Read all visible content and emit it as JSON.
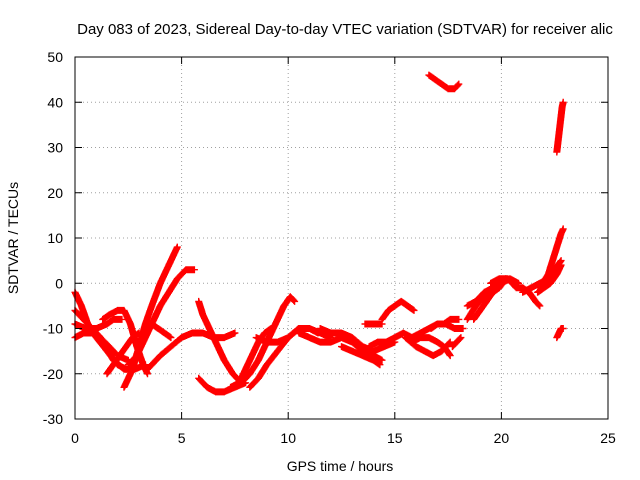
{
  "chart_data": {
    "type": "scatter",
    "title": "Day 083 of 2023, Sidereal Day-to-day VTEC variation (SDTVAR) for receiver alic",
    "xlabel": "GPS time / hours",
    "ylabel": "SDTVAR / TECUs",
    "xlim": [
      0,
      25
    ],
    "ylim": [
      -30,
      50
    ],
    "x_ticks": [
      0,
      5,
      10,
      15,
      20,
      25
    ],
    "y_ticks": [
      -30,
      -20,
      -10,
      0,
      10,
      20,
      30,
      40,
      50
    ],
    "x_tick_labels": [
      "0",
      "5",
      "10",
      "15",
      "20",
      "25"
    ],
    "y_tick_labels": [
      "-30",
      "-20",
      "-10",
      "0",
      "10",
      "20",
      "30",
      "40",
      "50"
    ],
    "grid": true,
    "marker": "plus",
    "color": "#ff0000",
    "tracks": [
      {
        "points": [
          [
            0.0,
            -2
          ],
          [
            0.3,
            -5
          ],
          [
            0.6,
            -9
          ],
          [
            1.0,
            -12
          ],
          [
            1.5,
            -15
          ],
          [
            2.0,
            -18
          ],
          [
            2.4,
            -19
          ]
        ]
      },
      {
        "points": [
          [
            0.0,
            -6
          ],
          [
            0.4,
            -8
          ],
          [
            0.8,
            -10
          ],
          [
            1.2,
            -12
          ],
          [
            1.8,
            -17
          ],
          [
            2.3,
            -19
          ],
          [
            2.8,
            -19
          ],
          [
            3.3,
            -18
          ]
        ]
      },
      {
        "points": [
          [
            0.0,
            -12
          ],
          [
            0.4,
            -11
          ],
          [
            0.8,
            -11
          ],
          [
            1.4,
            -13
          ],
          [
            2.0,
            -16
          ],
          [
            2.5,
            -17
          ]
        ]
      },
      {
        "points": [
          [
            0.0,
            -9
          ],
          [
            0.5,
            -10
          ],
          [
            1.0,
            -10
          ],
          [
            1.5,
            -9
          ],
          [
            1.8,
            -8
          ],
          [
            2.2,
            -8
          ]
        ]
      },
      {
        "points": [
          [
            1.3,
            -8
          ],
          [
            1.6,
            -7
          ],
          [
            2.0,
            -6
          ],
          [
            2.3,
            -6
          ],
          [
            2.6,
            -9
          ],
          [
            2.9,
            -14
          ],
          [
            3.2,
            -18
          ],
          [
            3.4,
            -20
          ]
        ]
      },
      {
        "points": [
          [
            1.5,
            -20
          ],
          [
            1.8,
            -18
          ],
          [
            2.1,
            -16
          ],
          [
            2.4,
            -14
          ],
          [
            2.7,
            -12
          ],
          [
            3.0,
            -11
          ]
        ]
      },
      {
        "points": [
          [
            2.3,
            -23
          ],
          [
            2.7,
            -19
          ],
          [
            3.0,
            -14
          ],
          [
            3.3,
            -9
          ],
          [
            3.6,
            -5
          ],
          [
            4.0,
            0
          ],
          [
            4.4,
            4
          ],
          [
            4.8,
            8
          ]
        ]
      },
      {
        "points": [
          [
            2.5,
            -18
          ],
          [
            2.9,
            -16
          ],
          [
            3.2,
            -13
          ],
          [
            3.6,
            -9
          ],
          [
            4.0,
            -5
          ],
          [
            4.4,
            -2
          ],
          [
            4.8,
            1
          ],
          [
            5.2,
            3
          ],
          [
            5.6,
            3
          ]
        ]
      },
      {
        "points": [
          [
            3.6,
            -9
          ],
          [
            3.9,
            -10
          ],
          [
            4.2,
            -11
          ],
          [
            4.5,
            -12
          ]
        ]
      },
      {
        "points": [
          [
            3.4,
            -19
          ],
          [
            4.0,
            -16
          ],
          [
            4.5,
            -14
          ],
          [
            5.0,
            -12
          ],
          [
            5.5,
            -11
          ],
          [
            6.0,
            -11
          ],
          [
            6.5,
            -12
          ],
          [
            7.0,
            -12
          ],
          [
            7.5,
            -11
          ]
        ]
      },
      {
        "points": [
          [
            5.8,
            -4
          ],
          [
            6.0,
            -7
          ],
          [
            6.3,
            -10
          ],
          [
            6.6,
            -13
          ],
          [
            7.0,
            -17
          ],
          [
            7.4,
            -20
          ],
          [
            7.8,
            -22
          ]
        ]
      },
      {
        "points": [
          [
            5.8,
            -21
          ],
          [
            6.2,
            -23
          ],
          [
            6.6,
            -24
          ],
          [
            7.0,
            -24
          ],
          [
            7.5,
            -23
          ],
          [
            8.0,
            -22
          ]
        ]
      },
      {
        "points": [
          [
            7.3,
            -23
          ],
          [
            7.7,
            -22
          ],
          [
            8.0,
            -19
          ],
          [
            8.3,
            -16
          ],
          [
            8.6,
            -13
          ],
          [
            8.9,
            -11
          ],
          [
            9.2,
            -10
          ]
        ]
      },
      {
        "points": [
          [
            7.8,
            -22
          ],
          [
            8.2,
            -20
          ],
          [
            8.6,
            -17
          ],
          [
            9.0,
            -13
          ],
          [
            9.4,
            -9
          ],
          [
            9.8,
            -5
          ],
          [
            10.1,
            -3
          ],
          [
            10.3,
            -4
          ]
        ]
      },
      {
        "points": [
          [
            8.2,
            -23
          ],
          [
            8.6,
            -21
          ],
          [
            9.0,
            -18
          ],
          [
            9.5,
            -15
          ],
          [
            10.0,
            -12
          ],
          [
            10.5,
            -10
          ],
          [
            11.0,
            -10
          ],
          [
            11.4,
            -11
          ]
        ]
      },
      {
        "points": [
          [
            8.5,
            -12
          ],
          [
            9.0,
            -13
          ],
          [
            9.5,
            -13
          ],
          [
            10.0,
            -12
          ],
          [
            10.5,
            -10
          ],
          [
            11.0,
            -10
          ],
          [
            11.5,
            -11
          ],
          [
            12.0,
            -12
          ]
        ]
      },
      {
        "points": [
          [
            10.5,
            -11
          ],
          [
            11.0,
            -12
          ],
          [
            11.5,
            -13
          ],
          [
            12.0,
            -13
          ],
          [
            12.5,
            -12
          ],
          [
            13.0,
            -13
          ],
          [
            13.5,
            -15
          ],
          [
            14.0,
            -16
          ],
          [
            14.4,
            -17
          ]
        ]
      },
      {
        "points": [
          [
            11.5,
            -10
          ],
          [
            12.0,
            -11
          ],
          [
            12.5,
            -11
          ],
          [
            13.0,
            -12
          ],
          [
            13.5,
            -14
          ],
          [
            14.0,
            -15
          ],
          [
            14.5,
            -14
          ],
          [
            15.0,
            -13
          ]
        ]
      },
      {
        "points": [
          [
            12.5,
            -14
          ],
          [
            13.0,
            -15
          ],
          [
            13.5,
            -16
          ],
          [
            14.0,
            -17
          ],
          [
            14.3,
            -18
          ]
        ]
      },
      {
        "points": [
          [
            13.8,
            -14
          ],
          [
            14.2,
            -13
          ],
          [
            14.6,
            -13
          ],
          [
            15.0,
            -12
          ],
          [
            15.4,
            -11
          ],
          [
            15.8,
            -12
          ]
        ]
      },
      {
        "points": [
          [
            13.6,
            -9
          ],
          [
            14.0,
            -9
          ],
          [
            14.4,
            -9
          ]
        ]
      },
      {
        "points": [
          [
            14.4,
            -8
          ],
          [
            14.7,
            -6
          ],
          [
            15.0,
            -5
          ],
          [
            15.3,
            -4
          ],
          [
            15.6,
            -5
          ],
          [
            15.9,
            -6
          ]
        ]
      },
      {
        "points": [
          [
            15.5,
            -12
          ],
          [
            16.0,
            -14
          ],
          [
            16.4,
            -15
          ],
          [
            16.8,
            -16
          ],
          [
            17.2,
            -15
          ],
          [
            17.6,
            -13
          ]
        ]
      },
      {
        "points": [
          [
            15.8,
            -13
          ],
          [
            16.2,
            -12
          ],
          [
            16.6,
            -12
          ],
          [
            17.0,
            -13
          ],
          [
            17.3,
            -14
          ],
          [
            17.6,
            -16
          ]
        ]
      },
      {
        "points": [
          [
            15.8,
            -12
          ],
          [
            16.2,
            -11
          ],
          [
            16.6,
            -10
          ],
          [
            17.0,
            -9
          ],
          [
            17.4,
            -9
          ],
          [
            17.8,
            -10
          ],
          [
            18.2,
            -10
          ]
        ]
      },
      {
        "points": [
          [
            16.7,
            -10
          ],
          [
            17.0,
            -9
          ],
          [
            17.3,
            -9
          ],
          [
            17.6,
            -8
          ],
          [
            18.0,
            -8
          ]
        ]
      },
      {
        "points": [
          [
            17.7,
            -14
          ],
          [
            17.9,
            -13
          ],
          [
            18.1,
            -12
          ]
        ]
      },
      {
        "points": [
          [
            18.4,
            -8
          ],
          [
            18.8,
            -5
          ],
          [
            19.2,
            -3
          ],
          [
            19.6,
            -1
          ],
          [
            20.0,
            0
          ],
          [
            20.4,
            1
          ],
          [
            20.8,
            0
          ]
        ]
      },
      {
        "points": [
          [
            18.4,
            -5
          ],
          [
            18.8,
            -4
          ],
          [
            19.2,
            -2
          ],
          [
            19.6,
            -1
          ]
        ]
      },
      {
        "points": [
          [
            18.7,
            -8
          ],
          [
            19.0,
            -6
          ],
          [
            19.3,
            -4
          ],
          [
            19.6,
            -2
          ],
          [
            19.9,
            -1
          ],
          [
            20.2,
            1
          ]
        ]
      },
      {
        "points": [
          [
            19.5,
            0
          ],
          [
            19.9,
            1
          ],
          [
            20.3,
            1
          ],
          [
            20.7,
            -1
          ],
          [
            21.0,
            -1
          ],
          [
            21.3,
            -2
          ],
          [
            21.6,
            -4
          ],
          [
            21.8,
            -5
          ]
        ]
      },
      {
        "points": [
          [
            21.0,
            -2
          ],
          [
            21.4,
            -1
          ],
          [
            21.8,
            0
          ],
          [
            22.2,
            1
          ],
          [
            22.5,
            3
          ],
          [
            22.8,
            5
          ]
        ]
      },
      {
        "points": [
          [
            21.8,
            -1
          ],
          [
            22.2,
            2
          ],
          [
            22.4,
            5
          ],
          [
            22.6,
            8
          ],
          [
            22.8,
            11
          ],
          [
            22.9,
            12
          ]
        ]
      },
      {
        "points": [
          [
            21.7,
            -2
          ],
          [
            22.0,
            -1
          ],
          [
            22.3,
            0
          ],
          [
            22.6,
            2
          ],
          [
            22.8,
            4
          ]
        ]
      },
      {
        "points": [
          [
            22.6,
            -12
          ],
          [
            22.7,
            -11
          ],
          [
            22.8,
            -10
          ],
          [
            22.9,
            -10
          ]
        ]
      },
      {
        "points": [
          [
            16.6,
            46
          ],
          [
            16.9,
            45
          ],
          [
            17.2,
            44
          ],
          [
            17.5,
            43
          ],
          [
            17.8,
            43
          ],
          [
            18.0,
            44
          ]
        ]
      },
      {
        "points": [
          [
            22.6,
            29
          ],
          [
            22.65,
            31
          ],
          [
            22.7,
            33
          ],
          [
            22.75,
            35
          ],
          [
            22.8,
            37
          ],
          [
            22.85,
            39
          ],
          [
            22.9,
            40
          ]
        ]
      }
    ]
  }
}
